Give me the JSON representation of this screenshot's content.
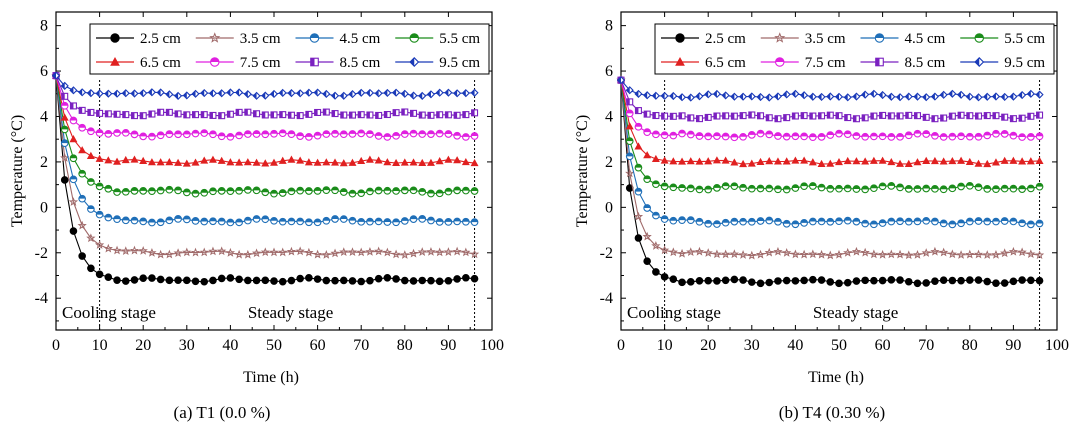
{
  "chart_data": [
    {
      "type": "line",
      "caption": "(a) T1 (0.0 %)",
      "xlabel": "Time (h)",
      "ylabel": "Temperature (°C)",
      "xlim": [
        0,
        100
      ],
      "ylim": [
        -5.4,
        8.6
      ],
      "xticks": [
        "0",
        "10",
        "20",
        "30",
        "40",
        "50",
        "60",
        "70",
        "80",
        "90",
        "100"
      ],
      "yticks": [
        "-4",
        "-2",
        "0",
        "2",
        "4",
        "6",
        "8"
      ],
      "annotations": [
        "Cooling stage",
        "Steady stage"
      ],
      "dividers_x": [
        10,
        96
      ],
      "legend_position": "top",
      "series": [
        {
          "name": "2.5 cm",
          "color": "#000000",
          "marker": "circle",
          "start": 5.8,
          "steady": -3.2,
          "tau": 2.8
        },
        {
          "name": "3.5 cm",
          "color": "#a06a6a",
          "marker": "star",
          "start": 5.8,
          "steady": -2.0,
          "tau": 3.2
        },
        {
          "name": "4.5 cm",
          "color": "#1f6fb8",
          "marker": "half-circle",
          "start": 5.8,
          "steady": -0.6,
          "tau": 3.2
        },
        {
          "name": "5.5 cm",
          "color": "#1a8c1a",
          "marker": "half-circle",
          "start": 5.8,
          "steady": 0.7,
          "tau": 3.2
        },
        {
          "name": "6.5 cm",
          "color": "#e02020",
          "marker": "triangle",
          "start": 5.8,
          "steady": 2.0,
          "tau": 3.0
        },
        {
          "name": "7.5 cm",
          "color": "#e020e0",
          "marker": "half-circle",
          "start": 5.8,
          "steady": 3.2,
          "tau": 2.8
        },
        {
          "name": "8.5 cm",
          "color": "#7a20c0",
          "marker": "half-square",
          "start": 5.8,
          "steady": 4.1,
          "tau": 2.6
        },
        {
          "name": "9.5 cm",
          "color": "#1a3ab8",
          "marker": "half-diamond",
          "start": 5.8,
          "steady": 5.0,
          "tau": 2.4
        }
      ]
    },
    {
      "type": "line",
      "caption": "(b) T4 (0.30 %)",
      "xlabel": "Time (h)",
      "ylabel": "Temperature (°C)",
      "xlim": [
        0,
        100
      ],
      "ylim": [
        -5.4,
        8.6
      ],
      "xticks": [
        "0",
        "10",
        "20",
        "30",
        "40",
        "50",
        "60",
        "70",
        "80",
        "90",
        "100"
      ],
      "yticks": [
        "-4",
        "-2",
        "0",
        "2",
        "4",
        "6",
        "8"
      ],
      "annotations": [
        "Cooling stage",
        "Steady stage"
      ],
      "dividers_x": [
        10,
        96
      ],
      "legend_position": "top",
      "series": [
        {
          "name": "2.5 cm",
          "color": "#000000",
          "marker": "circle",
          "start": 5.6,
          "steady": -3.25,
          "tau": 2.6
        },
        {
          "name": "3.5 cm",
          "color": "#a06a6a",
          "marker": "star",
          "start": 5.6,
          "steady": -2.05,
          "tau": 2.6
        },
        {
          "name": "4.5 cm",
          "color": "#1f6fb8",
          "marker": "half-circle",
          "start": 5.6,
          "steady": -0.65,
          "tau": 2.6
        },
        {
          "name": "5.5 cm",
          "color": "#1a8c1a",
          "marker": "half-circle",
          "start": 5.6,
          "steady": 0.85,
          "tau": 2.4
        },
        {
          "name": "6.5 cm",
          "color": "#e02020",
          "marker": "triangle",
          "start": 5.6,
          "steady": 2.0,
          "tau": 2.4
        },
        {
          "name": "7.5 cm",
          "color": "#e020e0",
          "marker": "half-circle",
          "start": 5.6,
          "steady": 3.15,
          "tau": 2.2
        },
        {
          "name": "8.5 cm",
          "color": "#7a20c0",
          "marker": "half-square",
          "start": 5.6,
          "steady": 4.0,
          "tau": 2.2
        },
        {
          "name": "9.5 cm",
          "color": "#1a3ab8",
          "marker": "half-diamond",
          "start": 5.6,
          "steady": 4.9,
          "tau": 2.0
        }
      ]
    }
  ]
}
